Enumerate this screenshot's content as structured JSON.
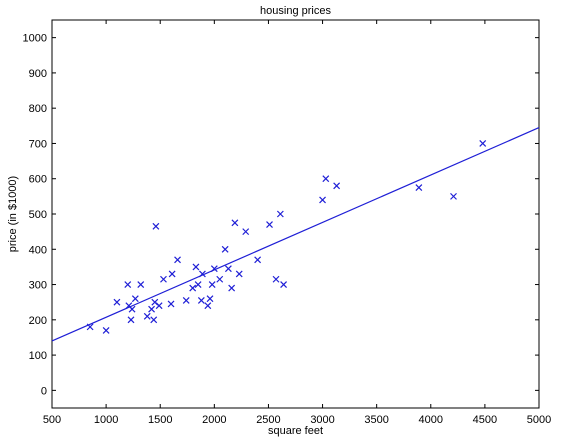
{
  "chart_data": {
    "type": "scatter",
    "title": "housing prices",
    "xlabel": "square feet",
    "ylabel": "price (in $1000)",
    "xlim": [
      500,
      5000
    ],
    "ylim": [
      -50,
      1050
    ],
    "x_ticks": [
      500,
      1000,
      1500,
      2000,
      2500,
      3000,
      3500,
      4000,
      4500,
      5000
    ],
    "y_ticks": [
      0,
      100,
      200,
      300,
      400,
      500,
      600,
      700,
      800,
      900,
      1000
    ],
    "grid": false,
    "legend": "none",
    "colors": {
      "series": "#1f1fd6",
      "axes": "#000000"
    },
    "series": [
      {
        "marker": "x",
        "points": [
          [
            852,
            180
          ],
          [
            1000,
            170
          ],
          [
            1100,
            250
          ],
          [
            1200,
            300
          ],
          [
            1210,
            240
          ],
          [
            1230,
            200
          ],
          [
            1240,
            230
          ],
          [
            1270,
            260
          ],
          [
            1320,
            300
          ],
          [
            1380,
            210
          ],
          [
            1420,
            230
          ],
          [
            1440,
            200
          ],
          [
            1450,
            250
          ],
          [
            1460,
            465
          ],
          [
            1490,
            240
          ],
          [
            1530,
            315
          ],
          [
            1600,
            245
          ],
          [
            1610,
            330
          ],
          [
            1660,
            370
          ],
          [
            1740,
            255
          ],
          [
            1800,
            290
          ],
          [
            1830,
            350
          ],
          [
            1850,
            300
          ],
          [
            1880,
            255
          ],
          [
            1890,
            330
          ],
          [
            1940,
            240
          ],
          [
            1960,
            260
          ],
          [
            1980,
            300
          ],
          [
            2000,
            345
          ],
          [
            2050,
            315
          ],
          [
            2100,
            400
          ],
          [
            2130,
            345
          ],
          [
            2160,
            290
          ],
          [
            2190,
            475
          ],
          [
            2230,
            330
          ],
          [
            2290,
            450
          ],
          [
            2400,
            370
          ],
          [
            2510,
            470
          ],
          [
            2570,
            315
          ],
          [
            2610,
            500
          ],
          [
            2640,
            300
          ],
          [
            3000,
            540
          ],
          [
            3030,
            600
          ],
          [
            3130,
            580
          ],
          [
            3890,
            575
          ],
          [
            4210,
            550
          ],
          [
            4480,
            700
          ]
        ]
      },
      {
        "type": "line",
        "points": [
          [
            500,
            140
          ],
          [
            5000,
            745
          ]
        ]
      }
    ]
  }
}
